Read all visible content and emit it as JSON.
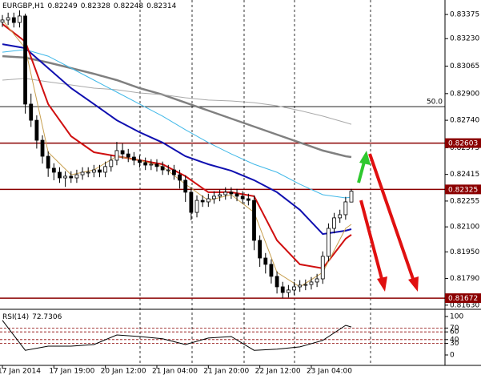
{
  "chart_data": [
    {
      "type": "candlestick",
      "title": "EURGBP,H1",
      "categories": [
        "17 Jan 2014",
        null,
        null,
        null,
        null,
        null,
        null,
        null,
        null,
        "17 Jan 19:00",
        null,
        null,
        null,
        null,
        null,
        null,
        null,
        null,
        "20 Jan 12:00",
        null,
        null,
        null,
        null,
        null,
        null,
        null,
        null,
        "21 Jan 04:00",
        null,
        null,
        null,
        null,
        null,
        null,
        null,
        null,
        "21 Jan 20:00",
        null,
        null,
        null,
        null,
        null,
        null,
        null,
        null,
        "22 Jan 12:00",
        null,
        null,
        null,
        null,
        null,
        null,
        null,
        null,
        "23 Jan 04:00",
        null,
        null,
        null,
        null,
        null,
        null,
        null
      ],
      "open": [
        0.8333,
        0.83342,
        0.83356,
        0.83327,
        0.83366,
        0.82837,
        0.8274,
        0.8262,
        0.82524,
        0.82452,
        0.82428,
        0.82394,
        0.82404,
        0.82394,
        0.82413,
        0.82428,
        0.82428,
        0.82442,
        0.82428,
        0.82462,
        0.825,
        0.82558,
        0.82538,
        0.82519,
        0.825,
        0.82486,
        0.82471,
        0.82476,
        0.82462,
        0.82442,
        0.82442,
        0.82413,
        0.8238,
        0.82308,
        0.82187,
        0.82259,
        0.8225,
        0.82269,
        0.82284,
        0.82293,
        0.82308,
        0.82298,
        0.82284,
        0.82269,
        0.82259,
        0.82019,
        0.81913,
        0.81875,
        0.81803,
        0.8174,
        0.81706,
        0.81721,
        0.8174,
        0.8175,
        0.81754,
        0.81769,
        0.81788,
        0.81923,
        0.82091,
        0.82154,
        0.82173,
        0.82249
      ],
      "high": [
        0.83372,
        0.83386,
        0.83386,
        0.834,
        0.8338,
        0.829,
        0.8277,
        0.8265,
        0.82554,
        0.82482,
        0.82458,
        0.82434,
        0.82434,
        0.82443,
        0.82458,
        0.82458,
        0.82472,
        0.82472,
        0.82492,
        0.8253,
        0.8261,
        0.826,
        0.82568,
        0.82549,
        0.8253,
        0.82516,
        0.82506,
        0.82506,
        0.82492,
        0.82472,
        0.82472,
        0.82443,
        0.8241,
        0.82338,
        0.82289,
        0.82289,
        0.82299,
        0.82314,
        0.82323,
        0.82338,
        0.82338,
        0.82328,
        0.82314,
        0.82299,
        0.82289,
        0.82049,
        0.81943,
        0.81905,
        0.81833,
        0.8177,
        0.81751,
        0.8177,
        0.8178,
        0.81784,
        0.81799,
        0.81818,
        0.81953,
        0.82121,
        0.82184,
        0.82203,
        0.8228,
        0.82328
      ],
      "low": [
        0.833,
        0.83312,
        0.83297,
        0.83297,
        0.8278,
        0.827,
        0.8257,
        0.8248,
        0.824,
        0.8238,
        0.82364,
        0.8234,
        0.82364,
        0.82364,
        0.82383,
        0.82398,
        0.82398,
        0.82398,
        0.82398,
        0.82432,
        0.8247,
        0.82508,
        0.82489,
        0.8247,
        0.82456,
        0.82441,
        0.82441,
        0.82432,
        0.82412,
        0.82412,
        0.82383,
        0.8233,
        0.8225,
        0.8214,
        0.82157,
        0.8222,
        0.8222,
        0.82239,
        0.82254,
        0.82263,
        0.82268,
        0.82254,
        0.82239,
        0.82229,
        0.8196,
        0.8186,
        0.8182,
        0.8176,
        0.817,
        0.81672,
        0.81676,
        0.81691,
        0.8171,
        0.8172,
        0.81724,
        0.81739,
        0.81758,
        0.81893,
        0.82061,
        0.82124,
        0.82143,
        0.82248
      ],
      "close": [
        0.83342,
        0.83356,
        0.83327,
        0.83366,
        0.82837,
        0.8274,
        0.8262,
        0.82524,
        0.82452,
        0.82428,
        0.82394,
        0.82404,
        0.82394,
        0.82413,
        0.82428,
        0.82428,
        0.82442,
        0.82428,
        0.82462,
        0.825,
        0.82558,
        0.82538,
        0.82519,
        0.825,
        0.82486,
        0.82471,
        0.82476,
        0.82462,
        0.82442,
        0.82442,
        0.82413,
        0.8238,
        0.82308,
        0.82187,
        0.82259,
        0.8225,
        0.82269,
        0.82284,
        0.82293,
        0.82308,
        0.82298,
        0.82284,
        0.82269,
        0.82259,
        0.82019,
        0.81913,
        0.81875,
        0.81803,
        0.8174,
        0.81706,
        0.81721,
        0.8174,
        0.8175,
        0.81754,
        0.81769,
        0.81788,
        0.81923,
        0.82091,
        0.82154,
        0.82173,
        0.8225,
        0.82314
      ],
      "series": [
        {
          "color": "#808080",
          "width": 2.5,
          "x": [
            0,
            4,
            8,
            12,
            16,
            20,
            24,
            28,
            32,
            36,
            40,
            44,
            48,
            52,
            56,
            60,
            61
          ],
          "values": [
            0.83125,
            0.83116,
            0.83087,
            0.83053,
            0.83019,
            0.82981,
            0.82933,
            0.82894,
            0.82846,
            0.82798,
            0.8275,
            0.82702,
            0.82654,
            0.82606,
            0.82558,
            0.82524,
            0.82519
          ]
        },
        {
          "color": "#a9a9a9",
          "width": 1,
          "x": [
            0,
            4,
            8,
            12,
            16,
            20,
            24,
            28,
            32,
            36,
            40,
            44,
            48,
            52,
            56,
            60,
            61
          ],
          "values": [
            0.82981,
            0.82991,
            0.82971,
            0.82952,
            0.82933,
            0.82923,
            0.82904,
            0.82894,
            0.82875,
            0.82861,
            0.82856,
            0.82846,
            0.82827,
            0.82798,
            0.82765,
            0.82726,
            0.82716
          ]
        },
        {
          "color": "#40b8e8",
          "width": 1,
          "x": [
            0,
            4,
            8,
            12,
            16,
            20,
            24,
            28,
            32,
            36,
            40,
            44,
            48,
            52,
            56,
            60,
            61
          ],
          "values": [
            0.83149,
            0.83164,
            0.83125,
            0.83053,
            0.82981,
            0.82909,
            0.82837,
            0.82765,
            0.82683,
            0.82606,
            0.82538,
            0.82476,
            0.82428,
            0.82356,
            0.82293,
            0.82274,
            0.82279
          ]
        },
        {
          "color": "#1010b0",
          "width": 2,
          "x": [
            0,
            4,
            8,
            12,
            16,
            20,
            24,
            28,
            32,
            36,
            40,
            44,
            48,
            52,
            56,
            60,
            61
          ],
          "values": [
            0.83197,
            0.83173,
            0.83053,
            0.82933,
            0.82837,
            0.8274,
            0.82668,
            0.82606,
            0.82524,
            0.82476,
            0.82437,
            0.8238,
            0.82308,
            0.82202,
            0.82057,
            0.82077,
            0.82086
          ]
        },
        {
          "color": "#d01010",
          "width": 2,
          "x": [
            0,
            4,
            8,
            12,
            16,
            20,
            24,
            28,
            32,
            36,
            40,
            44,
            48,
            52,
            56,
            60,
            61
          ],
          "values": [
            0.83318,
            0.83212,
            0.82837,
            0.82644,
            0.82548,
            0.82524,
            0.825,
            0.82476,
            0.82404,
            0.82308,
            0.82308,
            0.82284,
            0.82019,
            0.81875,
            0.81851,
            0.82029,
            0.82053
          ]
        },
        {
          "color": "#c8a050",
          "width": 1,
          "x": [
            0,
            4,
            8,
            12,
            16,
            20,
            24,
            28,
            32,
            36,
            40,
            44,
            48,
            52,
            56,
            60,
            61
          ],
          "values": [
            0.83342,
            0.83173,
            0.82548,
            0.82413,
            0.82442,
            0.82524,
            0.825,
            0.82462,
            0.82356,
            0.82259,
            0.82293,
            0.82187,
            0.81827,
            0.8174,
            0.81827,
            0.82091,
            0.82115
          ]
        }
      ],
      "ylim": [
        0.8161,
        0.83462
      ],
      "yticks": [
        0.83375,
        {
          "value": 0.8323,
          "label": "0.83230"
        },
        0.83065,
        {
          "value": 0.829,
          "label": "0.82900"
        },
        {
          "value": 0.8274,
          "label": "0.82740"
        },
        0.82575,
        0.82415,
        0.82255,
        {
          "value": 0.821,
          "label": "0.82100"
        },
        {
          "value": 0.8195,
          "label": "0.81950"
        },
        {
          "value": 0.8179,
          "label": "0.81790"
        },
        {
          "value": 0.8163,
          "label": "0.81630"
        }
      ],
      "levels": [
        0.82603,
        0.82325,
        0.81672
      ],
      "level_color": "#8b0000",
      "fib_line": {
        "value": 0.82822,
        "label": "50.0"
      }
    },
    {
      "type": "line",
      "title": "RSI(14)",
      "series": [
        {
          "color": "#000000",
          "x": [
            0,
            4,
            8,
            12,
            16,
            20,
            24,
            28,
            32,
            36,
            40,
            44,
            48,
            52,
            56,
            60,
            61
          ],
          "values": [
            90,
            12,
            23,
            23,
            27,
            52,
            48,
            42,
            27,
            44,
            48,
            12,
            15,
            21,
            38,
            77,
            72.7306
          ]
        }
      ],
      "ylim": [
        -27.1,
        114.6
      ],
      "yticks": [
        100,
        70,
        60,
        40,
        30,
        0
      ],
      "levels": [
        70,
        60,
        40,
        30
      ],
      "level_color": "#8b0000"
    }
  ]
}
